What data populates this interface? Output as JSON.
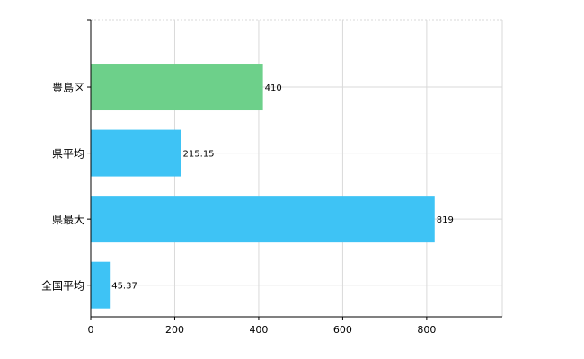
{
  "chart_data": {
    "type": "bar",
    "orientation": "horizontal",
    "title": "",
    "xlabel": "",
    "ylabel": "",
    "categories": [
      "豊島区",
      "県平均",
      "県最大",
      "全国平均"
    ],
    "values": [
      410,
      215.15,
      819,
      45.37
    ],
    "value_labels": [
      "410",
      "215.15",
      "819",
      "45.37"
    ],
    "bar_colors": [
      "#6dd08a",
      "#3ec3f5",
      "#3ec3f5",
      "#3ec3f5"
    ],
    "xlim": [
      0,
      980
    ],
    "x_ticks": [
      0,
      200,
      400,
      600,
      800
    ],
    "x_tick_labels": [
      "0",
      "200",
      "400",
      "600",
      "800"
    ],
    "grid": true,
    "legend": false
  }
}
